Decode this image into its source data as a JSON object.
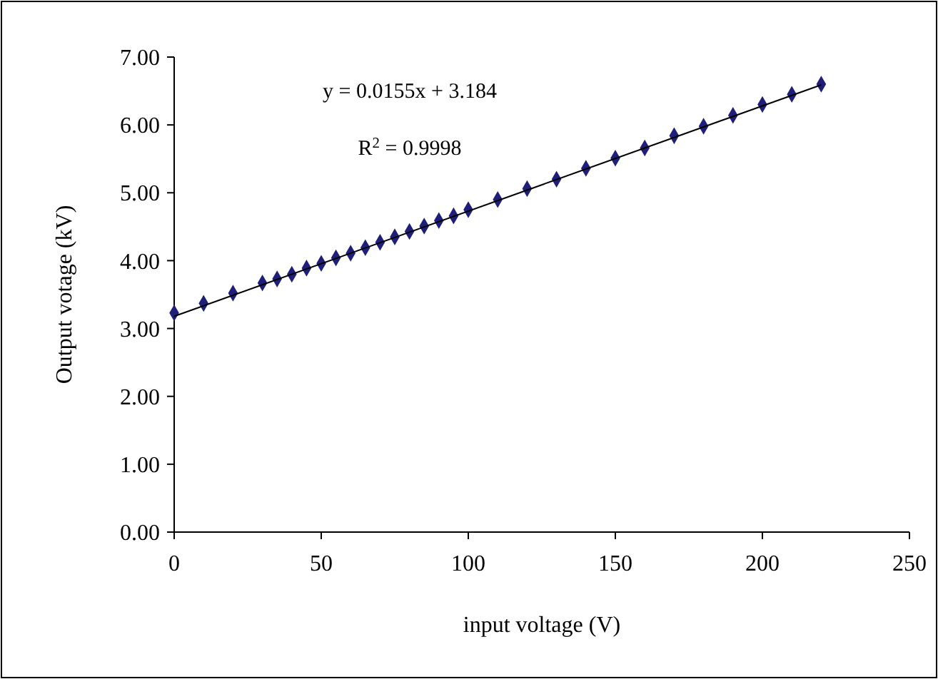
{
  "chart_data": {
    "type": "scatter",
    "xlabel": "input voltage (V)",
    "ylabel": "Output votage (kV)",
    "xlim": [
      0,
      250
    ],
    "xticks": [
      0,
      50,
      100,
      150,
      200,
      250
    ],
    "ylim": [
      0,
      7
    ],
    "yticks": [
      {
        "value": 0,
        "label": "0.00"
      },
      {
        "value": 1,
        "label": "1.00"
      },
      {
        "value": 2,
        "label": "2.00"
      },
      {
        "value": 3,
        "label": "3.00"
      },
      {
        "value": 4,
        "label": "4.00"
      },
      {
        "value": 5,
        "label": "5.00"
      },
      {
        "value": 6,
        "label": "6.00"
      },
      {
        "value": 7,
        "label": "7.00"
      }
    ],
    "grid": false,
    "marker": "diamond",
    "series": [
      {
        "color": "#1f1f7a",
        "x": [
          0,
          10,
          20,
          30,
          35,
          40,
          45,
          50,
          55,
          60,
          65,
          70,
          75,
          80,
          85,
          90,
          95,
          100,
          110,
          120,
          130,
          140,
          150,
          160,
          170,
          180,
          190,
          200,
          210,
          220
        ],
        "values": [
          3.23,
          3.37,
          3.52,
          3.67,
          3.73,
          3.8,
          3.89,
          3.96,
          4.04,
          4.11,
          4.19,
          4.27,
          4.35,
          4.43,
          4.51,
          4.59,
          4.66,
          4.75,
          4.9,
          5.06,
          5.2,
          5.36,
          5.51,
          5.66,
          5.84,
          5.98,
          6.14,
          6.3,
          6.45,
          6.6
        ]
      },
      {
        "type": "line",
        "color": "#000000",
        "line_style": "solid",
        "marker": "none",
        "x": [
          0,
          220
        ],
        "values": [
          3.18,
          6.59
        ]
      }
    ],
    "annotations": [
      "y = 0.0155x + 3.184",
      "R$^{2}$ = 0.9998"
    ]
  }
}
